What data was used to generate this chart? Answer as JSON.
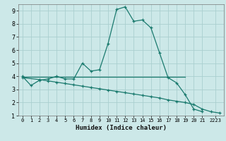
{
  "xlabel": "Humidex (Indice chaleur)",
  "background_color": "#cce8e8",
  "grid_color": "#aacfcf",
  "line_color": "#1a7a6e",
  "xlim": [
    -0.5,
    23.5
  ],
  "ylim": [
    1,
    9.5
  ],
  "xtick_labels": [
    "0",
    "1",
    "2",
    "3",
    "4",
    "5",
    "6",
    "7",
    "8",
    "9",
    "10",
    "11",
    "12",
    "13",
    "14",
    "15",
    "16",
    "17",
    "18",
    "19",
    "20",
    "21",
    "2223"
  ],
  "ytick_labels": [
    "1",
    "2",
    "3",
    "4",
    "5",
    "6",
    "7",
    "8",
    "9"
  ],
  "xtick_pos": [
    0,
    1,
    2,
    3,
    4,
    5,
    6,
    7,
    8,
    9,
    10,
    11,
    12,
    13,
    14,
    15,
    16,
    17,
    18,
    19,
    20,
    21,
    22.5
  ],
  "ytick_pos": [
    1,
    2,
    3,
    4,
    5,
    6,
    7,
    8,
    9
  ],
  "curve1_x": [
    0,
    1,
    2,
    3,
    4,
    5,
    6,
    7,
    8,
    9,
    10,
    11,
    12,
    13,
    14,
    15,
    16,
    17,
    18,
    19,
    20,
    21
  ],
  "curve1_y": [
    4.0,
    3.3,
    3.7,
    3.8,
    4.0,
    3.8,
    3.8,
    5.0,
    4.4,
    4.5,
    6.5,
    9.1,
    9.3,
    8.2,
    8.3,
    7.7,
    5.8,
    3.9,
    3.5,
    2.6,
    1.5,
    1.3
  ],
  "curve2_x": [
    0,
    2,
    3,
    4,
    5,
    6,
    7,
    8,
    9,
    10,
    11,
    12,
    13,
    14,
    15,
    16,
    17,
    18,
    19,
    20,
    21,
    22,
    23
  ],
  "curve2_y": [
    3.9,
    3.75,
    3.65,
    3.55,
    3.45,
    3.35,
    3.25,
    3.15,
    3.05,
    2.95,
    2.85,
    2.75,
    2.65,
    2.55,
    2.45,
    2.35,
    2.2,
    2.1,
    2.0,
    1.85,
    1.5,
    1.3,
    1.2
  ],
  "curve3_x": [
    0,
    19
  ],
  "curve3_y": [
    3.95,
    3.95
  ]
}
